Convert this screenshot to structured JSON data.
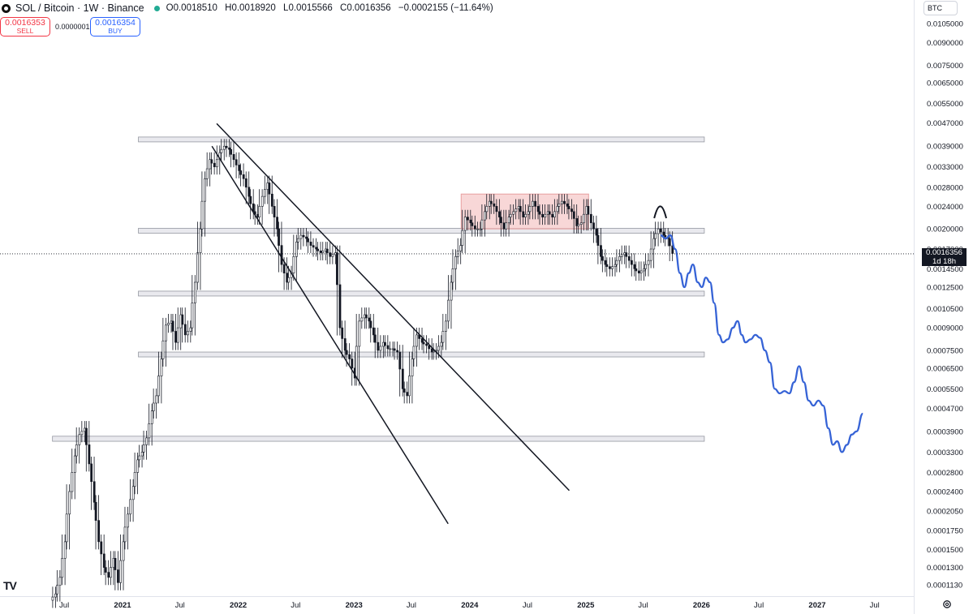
{
  "header": {
    "symbol_icon": "sol-coin-icon",
    "title": "SOL / Bitcoin · 1W · Binance",
    "status_color": "#22ab94",
    "ohlc": {
      "open_label": "O",
      "open": "0.0018510",
      "high_label": "H",
      "high": "0.0018920",
      "low_label": "L",
      "low": "0.0015566",
      "close_label": "C",
      "close": "0.0016356",
      "change": "−0.0002155 (−11.64%)"
    }
  },
  "trade": {
    "sell_price": "0.0016353",
    "sell_label": "SELL",
    "spread": "0.0000001",
    "buy_price": "0.0016354",
    "buy_label": "BUY"
  },
  "currency_button": "BTC",
  "logo_text": "TV",
  "price_tag": {
    "value": "0.0016356",
    "countdown": "1d 18h"
  },
  "chart_data": {
    "type": "line",
    "scale": "log",
    "ylim": [
      9e-05,
      0.0125
    ],
    "xlim": [
      "2020-05-01",
      "2027-08-01"
    ],
    "y_ticks": [
      "0.0105000",
      "0.0090000",
      "0.0075000",
      "0.0065000",
      "0.0055000",
      "0.0047000",
      "0.0039000",
      "0.0033000",
      "0.0028000",
      "0.0024000",
      "0.0020000",
      "0.0017000",
      "0.0014500",
      "0.0012500",
      "0.0010500",
      "0.0009000",
      "0.0007500",
      "0.0006500",
      "0.0005500",
      "0.0004700",
      "0.0003900",
      "0.0003300",
      "0.0002800",
      "0.0002400",
      "0.0002050",
      "0.0001750",
      "0.0001500",
      "0.0001300",
      "0.0001130"
    ],
    "x_ticks": [
      {
        "label": "Jul",
        "date": "2020-07-01",
        "bold": false
      },
      {
        "label": "2021",
        "date": "2021-01-01",
        "bold": true
      },
      {
        "label": "Jul",
        "date": "2021-07-01",
        "bold": false
      },
      {
        "label": "2022",
        "date": "2022-01-01",
        "bold": true
      },
      {
        "label": "Jul",
        "date": "2022-07-01",
        "bold": false
      },
      {
        "label": "2023",
        "date": "2023-01-01",
        "bold": true
      },
      {
        "label": "Jul",
        "date": "2023-07-01",
        "bold": false
      },
      {
        "label": "2024",
        "date": "2024-01-01",
        "bold": true
      },
      {
        "label": "Jul",
        "date": "2024-07-01",
        "bold": false
      },
      {
        "label": "2025",
        "date": "2025-01-01",
        "bold": true
      },
      {
        "label": "Jul",
        "date": "2025-07-01",
        "bold": false
      },
      {
        "label": "2026",
        "date": "2026-01-01",
        "bold": true
      },
      {
        "label": "Jul",
        "date": "2026-07-01",
        "bold": false
      },
      {
        "label": "2027",
        "date": "2027-01-01",
        "bold": true
      },
      {
        "label": "Jul",
        "date": "2027-07-01",
        "bold": false
      }
    ],
    "series": [
      {
        "values": [
          [
            "2020-06-01",
            0.000105
          ],
          [
            "2020-06-15",
            0.00012
          ],
          [
            "2020-07-01",
            0.00016
          ],
          [
            "2020-07-15",
            0.00024
          ],
          [
            "2020-08-01",
            0.00032
          ],
          [
            "2020-08-15",
            0.00038
          ],
          [
            "2020-09-01",
            0.0004
          ],
          [
            "2020-09-15",
            0.0003
          ],
          [
            "2020-10-01",
            0.00022
          ],
          [
            "2020-10-15",
            0.00016
          ],
          [
            "2020-11-01",
            0.00013
          ],
          [
            "2020-11-15",
            0.00012
          ],
          [
            "2020-12-01",
            0.00014
          ],
          [
            "2020-12-15",
            0.000115
          ],
          [
            "2021-01-01",
            0.00016
          ],
          [
            "2021-01-15",
            0.0002
          ],
          [
            "2021-02-01",
            0.00025
          ],
          [
            "2021-02-15",
            0.00031
          ],
          [
            "2021-03-01",
            0.00033
          ],
          [
            "2021-03-15",
            0.00037
          ],
          [
            "2021-04-01",
            0.00046
          ],
          [
            "2021-04-15",
            0.00052
          ],
          [
            "2021-05-01",
            0.0007
          ],
          [
            "2021-05-15",
            0.00092
          ],
          [
            "2021-06-01",
            0.00095
          ],
          [
            "2021-06-15",
            0.0008
          ],
          [
            "2021-07-01",
            0.001
          ],
          [
            "2021-07-15",
            0.00085
          ],
          [
            "2021-08-01",
            0.0009
          ],
          [
            "2021-08-15",
            0.0013
          ],
          [
            "2021-09-01",
            0.002
          ],
          [
            "2021-09-15",
            0.003
          ],
          [
            "2021-10-01",
            0.0035
          ],
          [
            "2021-10-15",
            0.0033
          ],
          [
            "2021-11-01",
            0.0037
          ],
          [
            "2021-11-15",
            0.0039
          ],
          [
            "2021-12-01",
            0.0038
          ],
          [
            "2021-12-15",
            0.0035
          ],
          [
            "2022-01-01",
            0.0032
          ],
          [
            "2022-01-15",
            0.003
          ],
          [
            "2022-02-01",
            0.0026
          ],
          [
            "2022-02-15",
            0.0023
          ],
          [
            "2022-03-01",
            0.0022
          ],
          [
            "2022-03-15",
            0.0026
          ],
          [
            "2022-04-01",
            0.0029
          ],
          [
            "2022-04-15",
            0.0024
          ],
          [
            "2022-05-01",
            0.002
          ],
          [
            "2022-05-15",
            0.0015
          ],
          [
            "2022-06-01",
            0.0013
          ],
          [
            "2022-06-15",
            0.0014
          ],
          [
            "2022-07-01",
            0.0018
          ],
          [
            "2022-07-15",
            0.0019
          ],
          [
            "2022-08-01",
            0.00185
          ],
          [
            "2022-08-15",
            0.00175
          ],
          [
            "2022-09-01",
            0.0017
          ],
          [
            "2022-09-15",
            0.00165
          ],
          [
            "2022-10-01",
            0.0017
          ],
          [
            "2022-10-15",
            0.0016
          ],
          [
            "2022-11-01",
            0.00165
          ],
          [
            "2022-11-15",
            0.0009
          ],
          [
            "2022-12-01",
            0.00075
          ],
          [
            "2022-12-15",
            0.0007
          ],
          [
            "2023-01-01",
            0.0006
          ],
          [
            "2023-01-15",
            0.00095
          ],
          [
            "2023-02-01",
            0.001
          ],
          [
            "2023-02-15",
            0.00095
          ],
          [
            "2023-03-01",
            0.00085
          ],
          [
            "2023-03-15",
            0.00075
          ],
          [
            "2023-04-01",
            0.0008
          ],
          [
            "2023-04-15",
            0.00076
          ],
          [
            "2023-05-01",
            0.00076
          ],
          [
            "2023-05-15",
            0.00074
          ],
          [
            "2023-06-01",
            0.00055
          ],
          [
            "2023-06-15",
            0.00052
          ],
          [
            "2023-07-01",
            0.0007
          ],
          [
            "2023-07-15",
            0.00085
          ],
          [
            "2023-08-01",
            0.0008
          ],
          [
            "2023-08-15",
            0.00078
          ],
          [
            "2023-09-01",
            0.00074
          ],
          [
            "2023-09-15",
            0.00075
          ],
          [
            "2023-10-01",
            0.0008
          ],
          [
            "2023-10-15",
            0.00095
          ],
          [
            "2023-11-01",
            0.0013
          ],
          [
            "2023-11-15",
            0.0016
          ],
          [
            "2023-12-01",
            0.00175
          ],
          [
            "2023-12-15",
            0.0022
          ],
          [
            "2024-01-01",
            0.0021
          ],
          [
            "2024-01-15",
            0.002
          ],
          [
            "2024-02-01",
            0.002
          ],
          [
            "2024-02-15",
            0.0023
          ],
          [
            "2024-03-01",
            0.0025
          ],
          [
            "2024-03-15",
            0.0024
          ],
          [
            "2024-04-01",
            0.0022
          ],
          [
            "2024-04-15",
            0.002
          ],
          [
            "2024-05-01",
            0.0022
          ],
          [
            "2024-05-15",
            0.0023
          ],
          [
            "2024-06-01",
            0.0024
          ],
          [
            "2024-06-15",
            0.0022
          ],
          [
            "2024-07-01",
            0.0023
          ],
          [
            "2024-07-15",
            0.0025
          ],
          [
            "2024-08-01",
            0.0023
          ],
          [
            "2024-08-15",
            0.0022
          ],
          [
            "2024-09-01",
            0.0023
          ],
          [
            "2024-09-15",
            0.0022
          ],
          [
            "2024-10-01",
            0.0024
          ],
          [
            "2024-10-15",
            0.0025
          ],
          [
            "2024-11-01",
            0.0024
          ],
          [
            "2024-11-15",
            0.0023
          ],
          [
            "2024-12-01",
            0.00205
          ],
          [
            "2024-12-15",
            0.0021
          ],
          [
            "2025-01-01",
            0.0024
          ],
          [
            "2025-01-15",
            0.0021
          ],
          [
            "2025-02-01",
            0.0019
          ],
          [
            "2025-02-15",
            0.0016
          ],
          [
            "2025-03-01",
            0.0015
          ],
          [
            "2025-03-15",
            0.00145
          ],
          [
            "2025-04-01",
            0.0015
          ],
          [
            "2025-04-15",
            0.0016
          ],
          [
            "2025-05-01",
            0.00165
          ],
          [
            "2025-05-15",
            0.00155
          ],
          [
            "2025-06-01",
            0.00145
          ],
          [
            "2025-06-15",
            0.0014
          ],
          [
            "2025-07-01",
            0.00145
          ],
          [
            "2025-07-15",
            0.00155
          ],
          [
            "2025-08-01",
            0.00185
          ],
          [
            "2025-08-15",
            0.002
          ],
          [
            "2025-09-01",
            0.0019
          ],
          [
            "2025-09-15",
            0.00185
          ],
          [
            "2025-09-29",
            0.00164
          ]
        ]
      }
    ],
    "projection": [
      [
        "2025-08-25",
        0.0019
      ],
      [
        "2025-09-10",
        0.00185
      ],
      [
        "2025-09-25",
        0.0019
      ],
      [
        "2025-10-10",
        0.0017
      ],
      [
        "2025-10-25",
        0.0014
      ],
      [
        "2025-11-08",
        0.00125
      ],
      [
        "2025-11-22",
        0.0014
      ],
      [
        "2025-12-05",
        0.0015
      ],
      [
        "2025-12-20",
        0.0013
      ],
      [
        "2026-01-02",
        0.00125
      ],
      [
        "2026-01-15",
        0.00135
      ],
      [
        "2026-01-28",
        0.0013
      ],
      [
        "2026-02-10",
        0.0011
      ],
      [
        "2026-02-25",
        0.00085
      ],
      [
        "2026-03-10",
        0.0008
      ],
      [
        "2026-03-25",
        0.00082
      ],
      [
        "2026-04-10",
        0.0009
      ],
      [
        "2026-04-25",
        0.00095
      ],
      [
        "2026-05-08",
        0.00085
      ],
      [
        "2026-05-20",
        0.0008
      ],
      [
        "2026-06-05",
        0.00082
      ],
      [
        "2026-06-20",
        0.00085
      ],
      [
        "2026-07-05",
        0.00083
      ],
      [
        "2026-07-20",
        0.00075
      ],
      [
        "2026-08-05",
        0.00068
      ],
      [
        "2026-08-20",
        0.00055
      ],
      [
        "2026-09-05",
        0.00053
      ],
      [
        "2026-09-20",
        0.00054
      ],
      [
        "2026-10-05",
        0.00053
      ],
      [
        "2026-10-20",
        0.00058
      ],
      [
        "2026-11-05",
        0.00066
      ],
      [
        "2026-11-20",
        0.00058
      ],
      [
        "2026-12-05",
        0.0005
      ],
      [
        "2026-12-20",
        0.00048
      ],
      [
        "2027-01-05",
        0.0005
      ],
      [
        "2027-01-20",
        0.00048
      ],
      [
        "2027-02-05",
        0.0004
      ],
      [
        "2027-02-20",
        0.00035
      ],
      [
        "2027-03-05",
        0.00036
      ],
      [
        "2027-03-20",
        0.00033
      ],
      [
        "2027-04-05",
        0.00035
      ],
      [
        "2027-04-20",
        0.00038
      ],
      [
        "2027-05-05",
        0.00039
      ],
      [
        "2027-05-25",
        0.00045
      ]
    ],
    "projection_color": "#3663d6",
    "candle_color": "#131722",
    "annotations": {
      "horizontal_bands": [
        {
          "x0": "2021-02-20",
          "x1": "2026-01-10",
          "y0": 0.00408,
          "y1": 0.0042
        },
        {
          "x0": "2021-02-20",
          "x1": "2026-01-10",
          "y0": 0.00195,
          "y1": 0.00201
        },
        {
          "x0": "2021-02-20",
          "x1": "2026-01-10",
          "y0": 0.00117,
          "y1": 0.00121
        },
        {
          "x0": "2021-02-20",
          "x1": "2026-01-10",
          "y0": 0.00072,
          "y1": 0.00074
        },
        {
          "x0": "2020-05-25",
          "x1": "2026-01-10",
          "y0": 0.00036,
          "y1": 0.000375
        }
      ],
      "box": {
        "x0": "2023-12-05",
        "x1": "2025-01-10",
        "y0": 0.002,
        "y1": 0.00265,
        "color": "#f5c6c6",
        "stroke": "#e8a0a0"
      },
      "trendlines": [
        {
          "x0": "2021-10-25",
          "y0": 0.00468,
          "x1": "2024-11-10",
          "y1": 0.000242
        },
        {
          "x0": "2021-10-10",
          "y0": 0.0039,
          "x1": "2023-10-25",
          "y1": 0.000185
        }
      ],
      "arc": {
        "x0": "2025-08-05",
        "x1": "2025-09-12",
        "y": 0.00218,
        "peak": 0.00235
      },
      "current_price_line": 0.0016356
    }
  }
}
